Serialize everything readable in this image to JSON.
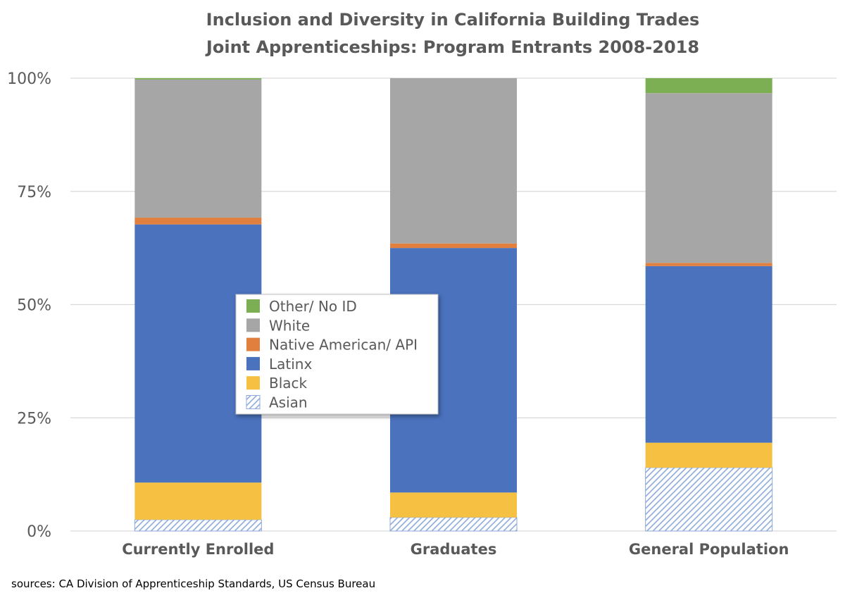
{
  "chart_data": {
    "type": "bar",
    "stacked": true,
    "percent": true,
    "title_lines": [
      "Inclusion and Diversity in California Building Trades",
      "Joint Apprenticeships: Program Entrants 2008-2018"
    ],
    "categories": [
      "Currently Enrolled",
      "Graduates",
      "General Population"
    ],
    "ylim": [
      0,
      100
    ],
    "yticks": [
      0,
      25,
      50,
      75,
      100
    ],
    "ytick_labels": [
      "0%",
      "25%",
      "50%",
      "75%",
      "100%"
    ],
    "grid": true,
    "legend_position": "center",
    "series": [
      {
        "name": "Asian",
        "color": "#4472c4",
        "pattern": "diagonal-hatch",
        "values": [
          2.5,
          3.0,
          14.0
        ]
      },
      {
        "name": "Black",
        "color": "#f6c142",
        "values": [
          8.2,
          5.5,
          5.5
        ]
      },
      {
        "name": "Latinx",
        "color": "#4a72bd",
        "values": [
          57.0,
          54.0,
          39.0
        ]
      },
      {
        "name": "Native American/ API",
        "color": "#e07f3e",
        "values": [
          1.5,
          1.0,
          0.7
        ]
      },
      {
        "name": "White",
        "color": "#a6a6a6",
        "values": [
          30.5,
          36.5,
          37.5
        ]
      },
      {
        "name": "Other/ No ID",
        "color": "#7cae53",
        "values": [
          0.3,
          0.0,
          3.3
        ]
      }
    ],
    "legend_order": [
      "Other/ No ID",
      "White",
      "Native American/ API",
      "Latinx",
      "Black",
      "Asian"
    ]
  },
  "source_note": "sources: CA Division of Apprenticeship Standards, US Census Bureau"
}
